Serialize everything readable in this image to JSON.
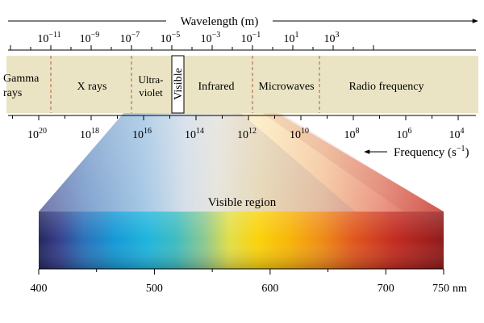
{
  "top_axis": {
    "title": "Wavelength (m)",
    "ticks": [
      {
        "base": "10",
        "exp": "−11"
      },
      {
        "base": "10",
        "exp": "−9"
      },
      {
        "base": "10",
        "exp": "−7"
      },
      {
        "base": "10",
        "exp": "−5"
      },
      {
        "base": "10",
        "exp": "−3"
      },
      {
        "base": "10",
        "exp": "−1"
      },
      {
        "base": "10",
        "exp": "1"
      },
      {
        "base": "10",
        "exp": "3"
      }
    ]
  },
  "bottom_axis": {
    "title_text": "Frequency (s",
    "title_exp": "−1",
    "title_close": ")",
    "ticks": [
      {
        "base": "10",
        "exp": "20"
      },
      {
        "base": "10",
        "exp": "18"
      },
      {
        "base": "10",
        "exp": "16"
      },
      {
        "base": "10",
        "exp": "14"
      },
      {
        "base": "10",
        "exp": "12"
      },
      {
        "base": "10",
        "exp": "10"
      },
      {
        "base": "10",
        "exp": "8"
      },
      {
        "base": "10",
        "exp": "6"
      },
      {
        "base": "10",
        "exp": "4"
      }
    ]
  },
  "regions": {
    "gamma_line1": "Gamma",
    "gamma_line2": "rays",
    "xray": "X rays",
    "uv_line1": "Ultra-",
    "uv_line2": "violet",
    "visible": "Visible",
    "infrared": "Infrared",
    "microwaves": "Microwaves",
    "radio": "Radio frequency"
  },
  "visible_region": {
    "title": "Visible region",
    "ticks": [
      "400",
      "500",
      "600",
      "700"
    ],
    "last_tick": "750",
    "unit": "nm"
  },
  "colors": {
    "band_fill": "#eae4c4",
    "divider": "#b05a3c",
    "axis": "#000000"
  }
}
